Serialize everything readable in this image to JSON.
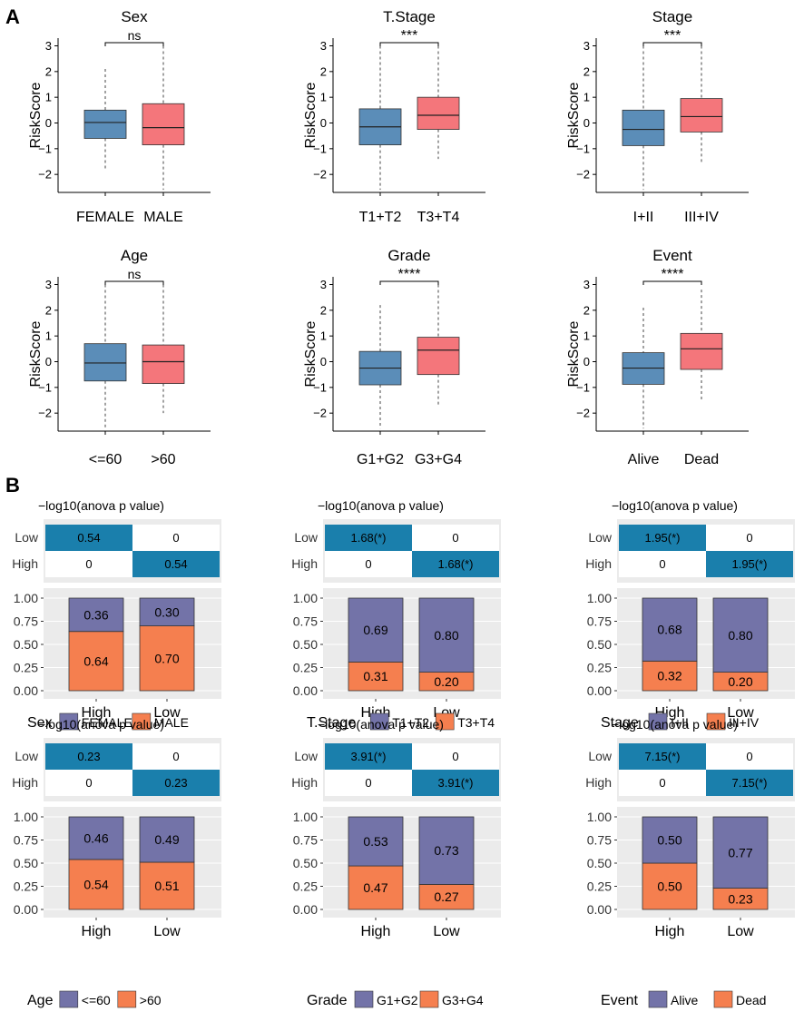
{
  "panel_labels": {
    "a": "A",
    "b": "B"
  },
  "colors": {
    "box_low": "#5b8db8",
    "box_high": "#f4767b",
    "heat_blue": "#1a7fac",
    "heat_panel": "#ebebeb",
    "bar_top": "#7373a8",
    "bar_bottom": "#f57f4f"
  },
  "chart_data": [
    {
      "type": "box",
      "title": "Sex",
      "ylabel": "RiskScore",
      "ylim": [
        -2.7,
        3.3
      ],
      "yticks": [
        -2,
        -1,
        0,
        1,
        2,
        3
      ],
      "categories": [
        "FEMALE",
        "MALE"
      ],
      "boxes": [
        {
          "whisker_low": -1.8,
          "q1": -0.6,
          "median": 0.02,
          "q3": 0.5,
          "whisker_high": 2.1
        },
        {
          "whisker_low": -2.6,
          "q1": -0.85,
          "median": -0.18,
          "q3": 0.75,
          "whisker_high": 3.0
        }
      ],
      "significance": "ns"
    },
    {
      "type": "box",
      "title": "T.Stage",
      "ylabel": "RiskScore",
      "ylim": [
        -2.7,
        3.3
      ],
      "yticks": [
        -2,
        -1,
        0,
        1,
        2,
        3
      ],
      "categories": [
        "T1+T2",
        "T3+T4"
      ],
      "boxes": [
        {
          "whisker_low": -2.6,
          "q1": -0.85,
          "median": -0.15,
          "q3": 0.55,
          "whisker_high": 3.0
        },
        {
          "whisker_low": -1.4,
          "q1": -0.25,
          "median": 0.3,
          "q3": 1.0,
          "whisker_high": 3.0
        }
      ],
      "significance": "***"
    },
    {
      "type": "box",
      "title": "Stage",
      "ylabel": "RiskScore",
      "ylim": [
        -2.7,
        3.3
      ],
      "yticks": [
        -2,
        -1,
        0,
        1,
        2,
        3
      ],
      "categories": [
        "I+II",
        "III+IV"
      ],
      "boxes": [
        {
          "whisker_low": -2.6,
          "q1": -0.88,
          "median": -0.25,
          "q3": 0.5,
          "whisker_high": 3.0
        },
        {
          "whisker_low": -1.6,
          "q1": -0.35,
          "median": 0.25,
          "q3": 0.95,
          "whisker_high": 3.0
        }
      ],
      "significance": "***"
    },
    {
      "type": "box",
      "title": "Age",
      "ylabel": "RiskScore",
      "ylim": [
        -2.7,
        3.3
      ],
      "yticks": [
        -2,
        -1,
        0,
        1,
        2,
        3
      ],
      "categories": [
        "<=60",
        ">60"
      ],
      "boxes": [
        {
          "whisker_low": -2.6,
          "q1": -0.75,
          "median": -0.05,
          "q3": 0.7,
          "whisker_high": 3.0
        },
        {
          "whisker_low": -2.0,
          "q1": -0.85,
          "median": 0.0,
          "q3": 0.65,
          "whisker_high": 3.0
        }
      ],
      "significance": "ns"
    },
    {
      "type": "box",
      "title": "Grade",
      "ylabel": "RiskScore",
      "ylim": [
        -2.7,
        3.3
      ],
      "yticks": [
        -2,
        -1,
        0,
        1,
        2,
        3
      ],
      "categories": [
        "G1+G2",
        "G3+G4"
      ],
      "boxes": [
        {
          "whisker_low": -2.6,
          "q1": -0.9,
          "median": -0.25,
          "q3": 0.4,
          "whisker_high": 2.2
        },
        {
          "whisker_low": -1.7,
          "q1": -0.5,
          "median": 0.45,
          "q3": 0.95,
          "whisker_high": 3.0
        }
      ],
      "significance": "****"
    },
    {
      "type": "box",
      "title": "Event",
      "ylabel": "RiskScore",
      "ylim": [
        -2.7,
        3.3
      ],
      "yticks": [
        -2,
        -1,
        0,
        1,
        2,
        3
      ],
      "categories": [
        "Alive",
        "Dead"
      ],
      "boxes": [
        {
          "whisker_low": -2.6,
          "q1": -0.88,
          "median": -0.25,
          "q3": 0.35,
          "whisker_high": 2.1
        },
        {
          "whisker_low": -1.5,
          "q1": -0.3,
          "median": 0.5,
          "q3": 1.1,
          "whisker_high": 2.8
        }
      ],
      "significance": "****"
    },
    {
      "type": "stacked-bar",
      "heatmap_title": "−log10(anova p value)",
      "heatmap_rows": [
        "Low",
        "High"
      ],
      "heatmap_value": "0.54",
      "heatmap_zero": "0",
      "categories": [
        "High",
        "Low"
      ],
      "yticks": [
        "1.00",
        "0.75",
        "0.50",
        "0.25",
        "0.00"
      ],
      "top": {
        "name": "FEMALE",
        "values": [
          0.36,
          0.3
        ],
        "labels": [
          "0.36",
          "0.30"
        ]
      },
      "bottom": {
        "name": "MALE",
        "values": [
          0.64,
          0.7
        ],
        "labels": [
          "0.64",
          "0.70"
        ]
      },
      "legend_title": "Sex"
    },
    {
      "type": "stacked-bar",
      "heatmap_title": "−log10(anova p value)",
      "heatmap_rows": [
        "Low",
        "High"
      ],
      "heatmap_value": "1.68(*)",
      "heatmap_zero": "0",
      "categories": [
        "High",
        "Low"
      ],
      "yticks": [
        "1.00",
        "0.75",
        "0.50",
        "0.25",
        "0.00"
      ],
      "top": {
        "name": "T1+T2",
        "values": [
          0.69,
          0.8
        ],
        "labels": [
          "0.69",
          "0.80"
        ]
      },
      "bottom": {
        "name": "T3+T4",
        "values": [
          0.31,
          0.2
        ],
        "labels": [
          "0.31",
          "0.20"
        ]
      },
      "legend_title": "T.Stage"
    },
    {
      "type": "stacked-bar",
      "heatmap_title": "−log10(anova p value)",
      "heatmap_rows": [
        "Low",
        "High"
      ],
      "heatmap_value": "1.95(*)",
      "heatmap_zero": "0",
      "categories": [
        "High",
        "Low"
      ],
      "yticks": [
        "1.00",
        "0.75",
        "0.50",
        "0.25",
        "0.00"
      ],
      "top": {
        "name": "I+II",
        "values": [
          0.68,
          0.8
        ],
        "labels": [
          "0.68",
          "0.80"
        ]
      },
      "bottom": {
        "name": "III+IV",
        "values": [
          0.32,
          0.2
        ],
        "labels": [
          "0.32",
          "0.20"
        ]
      },
      "legend_title": "Stage"
    },
    {
      "type": "stacked-bar",
      "heatmap_title": "−log10(anova p value)",
      "heatmap_rows": [
        "Low",
        "High"
      ],
      "heatmap_value": "0.23",
      "heatmap_zero": "0",
      "categories": [
        "High",
        "Low"
      ],
      "yticks": [
        "1.00",
        "0.75",
        "0.50",
        "0.25",
        "0.00"
      ],
      "top": {
        "name": "<=60",
        "values": [
          0.46,
          0.49
        ],
        "labels": [
          "0.46",
          "0.49"
        ]
      },
      "bottom": {
        "name": ">60",
        "values": [
          0.54,
          0.51
        ],
        "labels": [
          "0.54",
          "0.51"
        ]
      },
      "legend_title": "Age"
    },
    {
      "type": "stacked-bar",
      "heatmap_title": "−log10(anova p value)",
      "heatmap_rows": [
        "Low",
        "High"
      ],
      "heatmap_value": "3.91(*)",
      "heatmap_zero": "0",
      "categories": [
        "High",
        "Low"
      ],
      "yticks": [
        "1.00",
        "0.75",
        "0.50",
        "0.25",
        "0.00"
      ],
      "top": {
        "name": "G1+G2",
        "values": [
          0.53,
          0.73
        ],
        "labels": [
          "0.53",
          "0.73"
        ]
      },
      "bottom": {
        "name": "G3+G4",
        "values": [
          0.47,
          0.27
        ],
        "labels": [
          "0.47",
          "0.27"
        ]
      },
      "legend_title": "Grade"
    },
    {
      "type": "stacked-bar",
      "heatmap_title": "−log10(anova p value)",
      "heatmap_rows": [
        "Low",
        "High"
      ],
      "heatmap_value": "7.15(*)",
      "heatmap_zero": "0",
      "categories": [
        "High",
        "Low"
      ],
      "yticks": [
        "1.00",
        "0.75",
        "0.50",
        "0.25",
        "0.00"
      ],
      "top": {
        "name": "Alive",
        "values": [
          0.5,
          0.77
        ],
        "labels": [
          "0.50",
          "0.77"
        ]
      },
      "bottom": {
        "name": "Dead",
        "values": [
          0.5,
          0.23
        ],
        "labels": [
          "0.50",
          "0.23"
        ]
      },
      "legend_title": "Event"
    }
  ]
}
